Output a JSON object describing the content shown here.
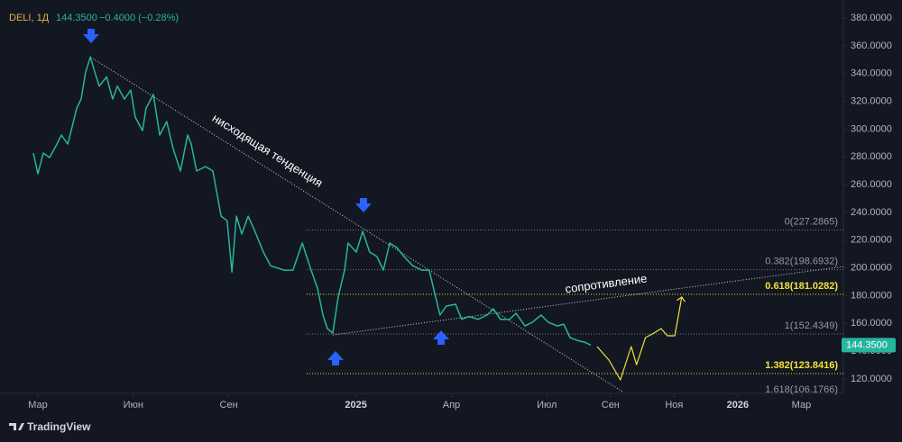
{
  "header": {
    "symbol": "DELI, 1Д",
    "price": "144.3500",
    "change": "−0.4000 (−0.28%)"
  },
  "footer": {
    "brand": "TradingView"
  },
  "chart_data": {
    "type": "line",
    "xlim": [
      0.81,
      27.32
    ],
    "ylim": [
      109.6,
      393.0
    ],
    "grid": false,
    "xticks": [
      {
        "value": 2,
        "label": "Мар"
      },
      {
        "value": 5,
        "label": "Июн"
      },
      {
        "value": 8,
        "label": "Сен"
      },
      {
        "value": 12,
        "label": "2025"
      },
      {
        "value": 15,
        "label": "Апр"
      },
      {
        "value": 18,
        "label": "Июл"
      },
      {
        "value": 20,
        "label": "Сен"
      },
      {
        "value": 22,
        "label": "Ноя"
      },
      {
        "value": 24,
        "label": "2026"
      },
      {
        "value": 26,
        "label": "Мар"
      }
    ],
    "yticks": [
      {
        "value": 120,
        "label": "120.0000"
      },
      {
        "value": 140,
        "label": "140.0000"
      },
      {
        "value": 160,
        "label": "160.0000"
      },
      {
        "value": 180,
        "label": "180.0000"
      },
      {
        "value": 200,
        "label": "200.0000"
      },
      {
        "value": 220,
        "label": "220.0000"
      },
      {
        "value": 240,
        "label": "240.0000"
      },
      {
        "value": 260,
        "label": "260.0000"
      },
      {
        "value": 280,
        "label": "280.0000"
      },
      {
        "value": 300,
        "label": "300.0000"
      },
      {
        "value": 320,
        "label": "320.0000"
      },
      {
        "value": 340,
        "label": "340.0000"
      },
      {
        "value": 360,
        "label": "360.0000"
      },
      {
        "value": 380,
        "label": "380.0000"
      }
    ],
    "series": [
      {
        "color": "#26b59f",
        "x": [
          1.86,
          2.0,
          2.17,
          2.37,
          2.6,
          2.74,
          2.94,
          3.08,
          3.22,
          3.36,
          3.5,
          3.65,
          3.79,
          3.93,
          4.16,
          4.35,
          4.5,
          4.72,
          4.92,
          5.06,
          5.29,
          5.4,
          5.63,
          5.83,
          6.05,
          6.25,
          6.48,
          6.71,
          6.82,
          6.99,
          7.27,
          7.5,
          7.76,
          7.95,
          8.1,
          8.24,
          8.41,
          8.61,
          8.8,
          9.09,
          9.32,
          9.74,
          10.02,
          10.31,
          10.59,
          10.79,
          10.96,
          11.1,
          11.27,
          11.44,
          11.64,
          11.75,
          12.01,
          12.21,
          12.43,
          12.66,
          12.86,
          13.06,
          13.28,
          13.51,
          13.79,
          14.08,
          14.3,
          14.47,
          14.64,
          14.84,
          15.13,
          15.32,
          15.55,
          15.84,
          16.12,
          16.32,
          16.54,
          16.83,
          17.03,
          17.31,
          17.54,
          17.82,
          18.05,
          18.33,
          18.53,
          18.73,
          18.95,
          19.18,
          19.38
        ],
        "values": [
          282.7,
          267.8,
          282.7,
          279.5,
          289.2,
          295.7,
          289.2,
          302,
          315,
          321.6,
          341,
          352,
          341,
          331,
          337.6,
          321.6,
          331,
          321.6,
          328,
          308.7,
          298.9,
          315,
          325,
          295.7,
          305.4,
          286,
          269.8,
          295.7,
          289.2,
          269.8,
          273,
          269.8,
          237.3,
          234,
          197,
          237.3,
          224.4,
          237.3,
          227.6,
          211.4,
          201.5,
          198.4,
          198.4,
          217.9,
          198.4,
          185.4,
          166,
          156.3,
          153,
          179,
          198.4,
          217.9,
          211.4,
          226.3,
          211.4,
          208.2,
          198.4,
          217.9,
          214.7,
          208.2,
          201.5,
          198.4,
          198.4,
          182.2,
          166,
          172.5,
          173.8,
          163,
          165,
          163,
          166,
          170.5,
          163,
          163,
          167.3,
          158.2,
          160.8,
          166,
          160.8,
          158.2,
          159.5,
          149.8,
          147.8,
          146.5,
          144.35
        ]
      },
      {
        "color": "#f2e33a",
        "x": [
          19.58,
          19.95,
          20.31,
          20.65,
          20.82,
          21.1,
          21.36,
          21.59,
          21.79,
          22.02,
          22.24
        ],
        "values": [
          143.3,
          133.6,
          119.3,
          143.3,
          130.3,
          149.8,
          153,
          156.3,
          151.1,
          151.1,
          179
        ]
      }
    ],
    "trendlines": [
      {
        "color": "#d1d4dc",
        "x": [
          3.65,
          20.37
        ],
        "values": [
          352,
          110.9
        ]
      },
      {
        "color": "#d1d4dc",
        "x": [
          11.27,
          27.32
        ],
        "values": [
          151.7,
          201
        ]
      }
    ],
    "annotations": [
      "нисходящая тенденция",
      "сопротивление"
    ],
    "levels": [
      {
        "value": 227.2865,
        "label": "0(227.2865)",
        "color": "#787b86"
      },
      {
        "value": 198.6932,
        "label": "0.382(198.6932)",
        "color": "#787b86"
      },
      {
        "value": 181.0282,
        "label": "0.618(181.0282)",
        "color": "#f2e33a"
      },
      {
        "value": 152.4349,
        "label": "1(152.4349)",
        "color": "#787b86"
      },
      {
        "value": 123.8416,
        "label": "1.382(123.8416)",
        "color": "#f2e33a"
      },
      {
        "value": 106.1766,
        "label": "1.618(106.1766)",
        "color": "#787b86"
      }
    ]
  }
}
